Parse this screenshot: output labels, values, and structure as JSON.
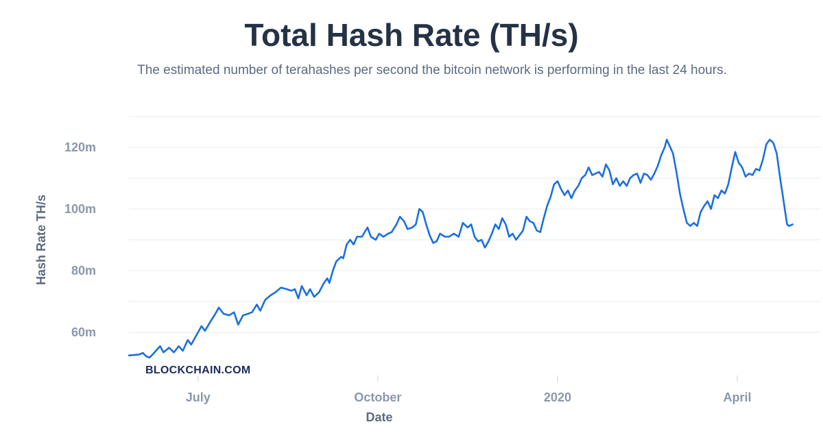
{
  "chart_data": {
    "type": "line",
    "title": "Total Hash Rate (TH/s)",
    "subtitle": "The estimated number of terahashes per second the bitcoin network is performing in the last 24 hours.",
    "xlabel": "Date",
    "ylabel": "Hash Rate TH/s",
    "brand": "BLOCKCHAIN.COM",
    "y_ticks": [
      {
        "value": 60000000,
        "label": "60m"
      },
      {
        "value": 80000000,
        "label": "80m"
      },
      {
        "value": 100000000,
        "label": "100m"
      },
      {
        "value": 120000000,
        "label": "120m"
      }
    ],
    "x_ticks": [
      {
        "value": 0.1,
        "label": "July"
      },
      {
        "value": 0.36,
        "label": "October"
      },
      {
        "value": 0.62,
        "label": "2020"
      },
      {
        "value": 0.88,
        "label": "April"
      }
    ],
    "ylim": [
      50000000,
      130000000
    ],
    "xlim": [
      0,
      1
    ],
    "grid": true,
    "series": [
      {
        "name": "Hash Rate",
        "color": "#1a6fde",
        "points": [
          [
            0.0,
            52.5
          ],
          [
            0.015,
            52.8
          ],
          [
            0.02,
            53.3
          ],
          [
            0.025,
            52.2
          ],
          [
            0.03,
            51.8
          ],
          [
            0.035,
            53.0
          ],
          [
            0.045,
            55.5
          ],
          [
            0.05,
            53.5
          ],
          [
            0.058,
            55.0
          ],
          [
            0.065,
            53.5
          ],
          [
            0.072,
            55.5
          ],
          [
            0.078,
            54.0
          ],
          [
            0.085,
            57.5
          ],
          [
            0.09,
            56.0
          ],
          [
            0.1,
            60.0
          ],
          [
            0.105,
            62.0
          ],
          [
            0.11,
            60.5
          ],
          [
            0.118,
            63.5
          ],
          [
            0.125,
            66.0
          ],
          [
            0.13,
            68.0
          ],
          [
            0.137,
            66.0
          ],
          [
            0.145,
            65.5
          ],
          [
            0.152,
            66.5
          ],
          [
            0.158,
            62.5
          ],
          [
            0.165,
            65.5
          ],
          [
            0.172,
            66.0
          ],
          [
            0.178,
            66.5
          ],
          [
            0.185,
            69.0
          ],
          [
            0.19,
            67.0
          ],
          [
            0.197,
            70.5
          ],
          [
            0.205,
            72.0
          ],
          [
            0.212,
            73.0
          ],
          [
            0.22,
            74.5
          ],
          [
            0.228,
            74.0
          ],
          [
            0.235,
            73.5
          ],
          [
            0.24,
            74.0
          ],
          [
            0.245,
            71.0
          ],
          [
            0.25,
            75.0
          ],
          [
            0.257,
            72.0
          ],
          [
            0.262,
            74.0
          ],
          [
            0.268,
            71.5
          ],
          [
            0.275,
            73.0
          ],
          [
            0.282,
            76.0
          ],
          [
            0.287,
            77.5
          ],
          [
            0.29,
            76.0
          ],
          [
            0.295,
            80.0
          ],
          [
            0.3,
            83.0
          ],
          [
            0.307,
            84.5
          ],
          [
            0.31,
            84.0
          ],
          [
            0.315,
            88.5
          ],
          [
            0.32,
            90.0
          ],
          [
            0.325,
            88.5
          ],
          [
            0.33,
            91.0
          ],
          [
            0.337,
            91.0
          ],
          [
            0.345,
            94.0
          ],
          [
            0.35,
            91.0
          ],
          [
            0.357,
            90.0
          ],
          [
            0.362,
            92.0
          ],
          [
            0.368,
            91.0
          ],
          [
            0.375,
            92.0
          ],
          [
            0.38,
            92.5
          ],
          [
            0.387,
            95.0
          ],
          [
            0.392,
            97.5
          ],
          [
            0.398,
            96.0
          ],
          [
            0.403,
            93.5
          ],
          [
            0.41,
            94.0
          ],
          [
            0.415,
            95.0
          ],
          [
            0.42,
            100.0
          ],
          [
            0.425,
            99.0
          ],
          [
            0.43,
            95.0
          ],
          [
            0.435,
            91.5
          ],
          [
            0.44,
            89.0
          ],
          [
            0.445,
            89.5
          ],
          [
            0.45,
            92.0
          ],
          [
            0.457,
            91.0
          ],
          [
            0.463,
            91.0
          ],
          [
            0.47,
            92.0
          ],
          [
            0.477,
            91.0
          ],
          [
            0.483,
            95.5
          ],
          [
            0.49,
            94.0
          ],
          [
            0.495,
            95.0
          ],
          [
            0.5,
            91.0
          ],
          [
            0.505,
            89.5
          ],
          [
            0.51,
            90.0
          ],
          [
            0.515,
            87.5
          ],
          [
            0.52,
            89.5
          ],
          [
            0.525,
            92.0
          ],
          [
            0.53,
            95.0
          ],
          [
            0.535,
            93.5
          ],
          [
            0.54,
            97.0
          ],
          [
            0.545,
            95.0
          ],
          [
            0.55,
            91.0
          ],
          [
            0.555,
            92.0
          ],
          [
            0.56,
            90.0
          ],
          [
            0.565,
            91.5
          ],
          [
            0.57,
            93.0
          ],
          [
            0.575,
            97.5
          ],
          [
            0.58,
            96.0
          ],
          [
            0.585,
            95.5
          ],
          [
            0.59,
            93.0
          ],
          [
            0.595,
            92.5
          ],
          [
            0.6,
            97.0
          ],
          [
            0.605,
            101.0
          ],
          [
            0.61,
            104.0
          ],
          [
            0.615,
            108.0
          ],
          [
            0.62,
            109.0
          ],
          [
            0.625,
            106.5
          ],
          [
            0.63,
            104.5
          ],
          [
            0.635,
            106.0
          ],
          [
            0.64,
            103.5
          ],
          [
            0.645,
            106.0
          ],
          [
            0.65,
            107.5
          ],
          [
            0.655,
            110.0
          ],
          [
            0.66,
            111.0
          ],
          [
            0.665,
            113.5
          ],
          [
            0.67,
            111.0
          ],
          [
            0.675,
            111.5
          ],
          [
            0.68,
            112.0
          ],
          [
            0.685,
            110.5
          ],
          [
            0.69,
            114.5
          ],
          [
            0.695,
            112.5
          ],
          [
            0.7,
            108.0
          ],
          [
            0.705,
            110.0
          ],
          [
            0.71,
            107.5
          ],
          [
            0.715,
            109.0
          ],
          [
            0.72,
            107.5
          ],
          [
            0.725,
            110.0
          ],
          [
            0.73,
            111.0
          ],
          [
            0.735,
            111.5
          ],
          [
            0.74,
            108.5
          ],
          [
            0.745,
            111.5
          ],
          [
            0.75,
            111.0
          ],
          [
            0.755,
            109.5
          ],
          [
            0.76,
            111.5
          ],
          [
            0.765,
            114.0
          ],
          [
            0.77,
            117.5
          ],
          [
            0.775,
            120.0
          ],
          [
            0.778,
            122.5
          ],
          [
            0.782,
            120.5
          ],
          [
            0.787,
            118.0
          ],
          [
            0.792,
            112.0
          ],
          [
            0.797,
            105.0
          ],
          [
            0.802,
            100.0
          ],
          [
            0.807,
            95.5
          ],
          [
            0.812,
            94.5
          ],
          [
            0.817,
            95.5
          ],
          [
            0.822,
            94.5
          ],
          [
            0.827,
            99.0
          ],
          [
            0.832,
            101.0
          ],
          [
            0.837,
            102.5
          ],
          [
            0.842,
            100.0
          ],
          [
            0.847,
            104.5
          ],
          [
            0.852,
            103.5
          ],
          [
            0.857,
            106.0
          ],
          [
            0.862,
            105.0
          ],
          [
            0.867,
            108.0
          ],
          [
            0.872,
            113.5
          ],
          [
            0.877,
            118.5
          ],
          [
            0.882,
            115.0
          ],
          [
            0.887,
            113.5
          ],
          [
            0.892,
            110.5
          ],
          [
            0.897,
            111.5
          ],
          [
            0.902,
            111.0
          ],
          [
            0.907,
            113.0
          ],
          [
            0.912,
            112.5
          ],
          [
            0.917,
            116.0
          ],
          [
            0.922,
            121.0
          ],
          [
            0.927,
            122.5
          ],
          [
            0.932,
            121.5
          ],
          [
            0.937,
            118.0
          ],
          [
            0.942,
            110.0
          ],
          [
            0.947,
            102.5
          ],
          [
            0.952,
            95.0
          ],
          [
            0.955,
            94.5
          ],
          [
            0.96,
            95.0
          ]
        ]
      }
    ]
  }
}
